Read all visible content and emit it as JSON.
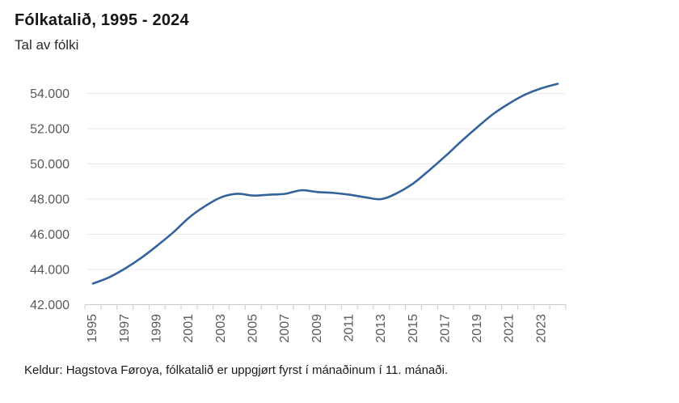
{
  "header": {
    "title": "Fólkatalið, 1995 - 2024",
    "subtitle": "Tal av fólki"
  },
  "footer": {
    "source": "Keldur: Hagstova Føroya, fólkatalið er uppgjørt fyrst í mánaðinum í 11. mánaði."
  },
  "colors": {
    "line": "#34639c",
    "grid": "#e8e8e8",
    "axis": "#c9c9c9",
    "tick_label": "#595959",
    "title": "#161616"
  },
  "chart_data": {
    "type": "line",
    "title": "Fólkatalið, 1995 - 2024",
    "subtitle": "Tal av fólki",
    "xlabel": "",
    "ylabel": "Tal av fólki",
    "x": [
      1995,
      1996,
      1997,
      1998,
      1999,
      2000,
      2001,
      2002,
      2003,
      2004,
      2005,
      2006,
      2007,
      2008,
      2009,
      2010,
      2011,
      2012,
      2013,
      2014,
      2015,
      2016,
      2017,
      2018,
      2019,
      2020,
      2021,
      2022,
      2023,
      2024
    ],
    "series": [
      {
        "name": "Tal av fólki",
        "values": [
          43200,
          43550,
          44050,
          44650,
          45350,
          46100,
          46950,
          47600,
          48100,
          48300,
          48200,
          48250,
          48300,
          48500,
          48400,
          48350,
          48250,
          48100,
          48000,
          48350,
          48900,
          49650,
          50450,
          51300,
          52100,
          52850,
          53450,
          53950,
          54300,
          54550
        ]
      }
    ],
    "ylim": [
      42000,
      55000
    ],
    "yticks": [
      42000,
      44000,
      46000,
      48000,
      50000,
      52000,
      54000
    ],
    "ytick_labels": [
      "42.000",
      "44.000",
      "46.000",
      "48.000",
      "50.000",
      "52.000",
      "54.000"
    ],
    "xtick_labels": [
      "1995",
      "1997",
      "1999",
      "2001",
      "2003",
      "2005",
      "2007",
      "2009",
      "2011",
      "2013",
      "2015",
      "2017",
      "2019",
      "2021",
      "2023"
    ],
    "grid": "horizontal",
    "legend": false,
    "source": "Keldur: Hagstova Føroya, fólkatalið er uppgjørt fyrst í mánaðinum í 11. mánaði."
  }
}
